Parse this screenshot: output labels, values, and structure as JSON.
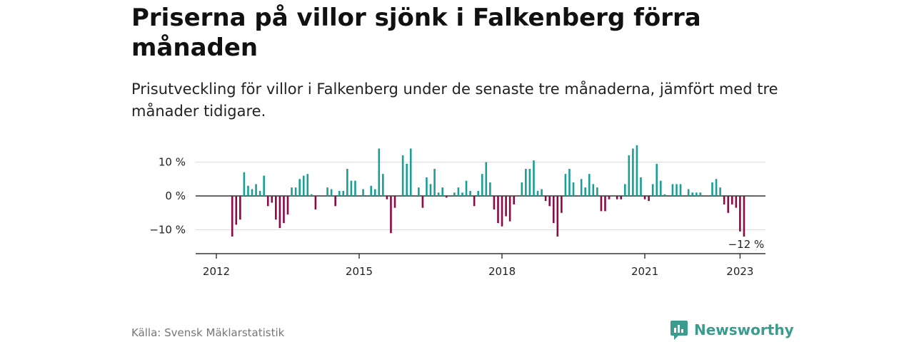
{
  "title": "Priserna på villor sjönk i Falkenberg förra månaden",
  "subtitle": "Prisutveckling för villor i Falkenberg under de senaste tre månaderna, jämfört med tre månader tidigare.",
  "source": "Källa: Svensk Mäklarstatistik",
  "logo": {
    "text": "Newsworthy",
    "icon": "newsworthy-bar-chart-icon"
  },
  "colors": {
    "positive": "#1a9e96",
    "negative": "#8c0a46",
    "axis": "#333333",
    "grid": "#dddddd"
  },
  "chart_data": {
    "type": "bar",
    "x_start": "2012-01",
    "x_step": "month",
    "x_ticks": [
      {
        "value": "2012-01",
        "label": "2012"
      },
      {
        "value": "2015-01",
        "label": "2015"
      },
      {
        "value": "2018-01",
        "label": "2018"
      },
      {
        "value": "2021-01",
        "label": "2021"
      },
      {
        "value": "2023-01",
        "label": "2023"
      }
    ],
    "y_ticks": [
      {
        "value": 10,
        "label": "10 %"
      },
      {
        "value": 0,
        "label": "0 %"
      },
      {
        "value": -10,
        "label": "−10 %"
      }
    ],
    "ylim": [
      -17,
      17
    ],
    "grid": true,
    "annotation": {
      "text": "−12 %",
      "target": "last"
    },
    "values": [
      null,
      null,
      null,
      null,
      -12,
      -8.5,
      -7,
      7,
      3,
      2,
      3.5,
      1.5,
      6,
      -3,
      -2,
      -7,
      -9.5,
      -8,
      -5.5,
      2.5,
      2.5,
      5,
      6,
      6.5,
      0.5,
      -4,
      0,
      0,
      2.5,
      2,
      -3,
      1.5,
      1.5,
      8,
      4.5,
      4.5,
      0,
      2,
      0,
      3,
      2,
      14,
      6.5,
      -1,
      -11,
      -3.5,
      0,
      12,
      9.5,
      14,
      0,
      2.5,
      -3.5,
      5.5,
      3.5,
      8,
      1,
      2.5,
      -0.5,
      0,
      1,
      2.5,
      1,
      4.5,
      1.5,
      -3,
      1.5,
      6.5,
      10,
      4,
      -4,
      -8,
      -9,
      -6,
      -7.5,
      -2.5,
      0,
      4,
      8,
      8,
      10.5,
      1.5,
      2,
      -1.5,
      -3,
      -8,
      -12,
      -5,
      6.5,
      8,
      4,
      0,
      5,
      2.5,
      6.5,
      3.5,
      2.5,
      -4.5,
      -4.5,
      -1,
      0,
      -1,
      -1,
      3.5,
      12,
      14,
      15,
      5.5,
      -1,
      -1.5,
      3.5,
      9.5,
      4.5,
      0.5,
      0,
      3.5,
      3.5,
      3.5,
      0,
      2,
      1,
      1,
      1,
      0,
      0,
      4,
      5,
      2.5,
      -2.5,
      -5,
      -2.5,
      -3.5,
      -10.5,
      -12
    ]
  }
}
